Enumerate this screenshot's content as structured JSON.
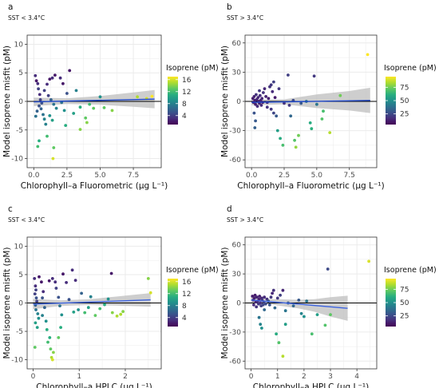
{
  "figure": {
    "colors": {
      "panel_grid": "#ebebeb",
      "regression_fit": "#1c45c6",
      "regression_fit_light": "#3d64e0",
      "confidence_band": "#bdbdbd",
      "zero_line": "#000000"
    },
    "colorscale": "viridis"
  },
  "chart_data": [
    {
      "type": "scatter",
      "panel_label": "a",
      "subtitle": "SST < 3.4°C",
      "xlabel": "Chlorophyll–a Fluorometric (µg L⁻¹)",
      "ylabel": "Model isoprene misfit (pM)",
      "xlim": [
        -0.5,
        9.6
      ],
      "ylim": [
        -11.6,
        11.6
      ],
      "xticks": [
        0,
        2.5,
        5,
        7.5
      ],
      "xtick_labels": [
        "0.0",
        "2.5",
        "5.0",
        "7.5"
      ],
      "yticks": [
        -10,
        -5,
        0,
        5,
        10
      ],
      "grid": true,
      "legend": {
        "title": "Isoprene (pM)",
        "position": "right",
        "ticks": [
          4,
          8,
          12,
          16
        ],
        "range": [
          1,
          17
        ]
      },
      "fit": {
        "x0": 0,
        "x1": 9.1,
        "y0": -0.08,
        "y1": 0.4,
        "band_x": [
          0,
          2.5,
          5,
          7.5,
          9.1
        ],
        "band_half": [
          0.75,
          0.5,
          0.75,
          1.25,
          1.6
        ]
      },
      "points": [
        [
          0.12,
          4.5,
          3
        ],
        [
          0.2,
          3.6,
          2
        ],
        [
          0.3,
          3.1,
          3
        ],
        [
          0.35,
          2.2,
          4
        ],
        [
          0.45,
          1.2,
          3
        ],
        [
          0.5,
          0.3,
          4
        ],
        [
          0.6,
          -0.3,
          5
        ],
        [
          0.55,
          -1.3,
          6
        ],
        [
          0.7,
          -2.3,
          7
        ],
        [
          0.8,
          -3.1,
          8
        ],
        [
          0.9,
          -4.0,
          8
        ],
        [
          0.4,
          -6.9,
          11
        ],
        [
          0.3,
          -7.9,
          12
        ],
        [
          0.15,
          -2.6,
          7
        ],
        [
          0.25,
          -1.7,
          6
        ],
        [
          0.4,
          -0.8,
          5
        ],
        [
          0.8,
          1.9,
          4
        ],
        [
          1.0,
          3.0,
          3
        ],
        [
          1.2,
          3.9,
          2
        ],
        [
          1.4,
          4.1,
          3
        ],
        [
          1.6,
          4.6,
          2
        ],
        [
          1.1,
          1.0,
          4
        ],
        [
          1.3,
          0.3,
          6
        ],
        [
          1.5,
          -0.5,
          7
        ],
        [
          1.7,
          -1.2,
          8
        ],
        [
          1.2,
          -2.5,
          9
        ],
        [
          1.4,
          -3.3,
          10
        ],
        [
          1.0,
          -6.1,
          12
        ],
        [
          1.5,
          -8.1,
          13
        ],
        [
          1.45,
          -10.0,
          16
        ],
        [
          2.0,
          4.1,
          3
        ],
        [
          2.2,
          3.1,
          2
        ],
        [
          2.1,
          -0.2,
          7
        ],
        [
          2.3,
          -1.6,
          9
        ],
        [
          2.4,
          -4.2,
          11
        ],
        [
          2.7,
          5.4,
          2
        ],
        [
          2.5,
          1.4,
          5
        ],
        [
          3.0,
          -2.1,
          10
        ],
        [
          3.2,
          1.9,
          8
        ],
        [
          3.5,
          -1.0,
          11
        ],
        [
          3.5,
          -4.9,
          14
        ],
        [
          3.9,
          -2.9,
          13
        ],
        [
          4.0,
          -3.7,
          14
        ],
        [
          4.2,
          -0.5,
          12
        ],
        [
          4.5,
          -1.2,
          13
        ],
        [
          5.0,
          0.8,
          9
        ],
        [
          5.3,
          -1.1,
          13
        ],
        [
          5.9,
          -1.6,
          14
        ],
        [
          7.8,
          0.8,
          15
        ],
        [
          8.5,
          0.5,
          16
        ],
        [
          8.9,
          0.9,
          17
        ]
      ]
    },
    {
      "type": "scatter",
      "panel_label": "b",
      "subtitle": "SST > 3.4°C",
      "xlabel": "Chlorophyll–a Fluorometric (µg L⁻¹)",
      "ylabel": "Model isoprene misfit (pM)",
      "xlim": [
        -0.5,
        9.6
      ],
      "ylim": [
        -68,
        68
      ],
      "xticks": [
        0,
        2.5,
        5,
        7.5
      ],
      "xtick_labels": [
        "0.0",
        "2.5",
        "5.0",
        "7.5"
      ],
      "yticks": [
        -60,
        -30,
        0,
        30,
        60
      ],
      "grid": true,
      "legend": {
        "title": "Isoprene (pM)",
        "position": "right",
        "ticks": [
          25,
          50,
          75
        ],
        "range": [
          5,
          95
        ]
      },
      "fit": {
        "x0": 0,
        "x1": 9.1,
        "y0": -1.0,
        "y1": 1.0,
        "band_x": [
          0,
          2.5,
          5,
          7.5,
          9.1
        ],
        "band_half": [
          3,
          2.5,
          7,
          10,
          13
        ]
      },
      "points": [
        [
          0.1,
          3,
          12
        ],
        [
          0.15,
          -1,
          10
        ],
        [
          0.2,
          5,
          14
        ],
        [
          0.25,
          1,
          12
        ],
        [
          0.3,
          -3,
          13
        ],
        [
          0.35,
          7,
          18
        ],
        [
          0.4,
          2,
          14
        ],
        [
          0.45,
          -5,
          16
        ],
        [
          0.5,
          4,
          15
        ],
        [
          0.55,
          0,
          12
        ],
        [
          0.6,
          -2,
          13
        ],
        [
          0.65,
          6,
          17
        ],
        [
          0.7,
          1,
          14
        ],
        [
          0.75,
          -4,
          16
        ],
        [
          0.8,
          3,
          15
        ],
        [
          0.85,
          -1,
          12
        ],
        [
          0.2,
          -12,
          28
        ],
        [
          0.3,
          -20,
          30
        ],
        [
          0.25,
          -27,
          32
        ],
        [
          0.6,
          11,
          20
        ],
        [
          0.9,
          9,
          18
        ],
        [
          1.0,
          13,
          15
        ],
        [
          1.1,
          5,
          14
        ],
        [
          1.2,
          -1,
          16
        ],
        [
          1.3,
          3,
          13
        ],
        [
          1.4,
          15,
          18
        ],
        [
          1.5,
          17,
          20
        ],
        [
          1.6,
          10,
          16
        ],
        [
          1.7,
          20,
          22
        ],
        [
          1.8,
          4,
          12
        ],
        [
          1.2,
          -6,
          18
        ],
        [
          1.5,
          -8,
          20
        ],
        [
          1.7,
          -12,
          24
        ],
        [
          1.9,
          -15,
          30
        ],
        [
          2.0,
          -30,
          55
        ],
        [
          2.2,
          -38,
          60
        ],
        [
          2.4,
          -45,
          68
        ],
        [
          2.1,
          13,
          20
        ],
        [
          2.5,
          -2,
          18
        ],
        [
          2.8,
          27,
          22
        ],
        [
          2.9,
          -4,
          20
        ],
        [
          3.0,
          -15,
          35
        ],
        [
          3.2,
          1,
          25
        ],
        [
          3.3,
          -40,
          70
        ],
        [
          3.4,
          -47,
          80
        ],
        [
          3.6,
          -35,
          75
        ],
        [
          3.8,
          -2,
          30
        ],
        [
          4.2,
          0,
          40
        ],
        [
          4.5,
          -22,
          60
        ],
        [
          4.6,
          -28,
          62
        ],
        [
          4.8,
          26,
          20
        ],
        [
          5.0,
          -3,
          40
        ],
        [
          5.4,
          -18,
          70
        ],
        [
          5.5,
          -10,
          68
        ],
        [
          6.0,
          -32,
          85
        ],
        [
          6.8,
          6,
          75
        ],
        [
          8.9,
          48,
          95
        ]
      ]
    },
    {
      "type": "scatter",
      "panel_label": "c",
      "subtitle": "SST < 3.4°C",
      "xlabel": "Chlorophyll–a HPLC (µg L⁻¹)",
      "ylabel": "Model isoprene misfit (pM)",
      "xlim": [
        -0.13,
        2.78
      ],
      "ylim": [
        -11.6,
        11.6
      ],
      "xticks": [
        0,
        1,
        2
      ],
      "xtick_labels": [
        "0",
        "1",
        "2"
      ],
      "yticks": [
        -10,
        -5,
        0,
        5,
        10
      ],
      "grid": true,
      "legend": {
        "title": "Isoprene (pM)",
        "position": "right",
        "ticks": [
          4,
          8,
          12,
          16
        ],
        "range": [
          1,
          17
        ]
      },
      "fit": {
        "x0": 0,
        "x1": 2.55,
        "y0": -0.2,
        "y1": 0.55,
        "band_x": [
          0,
          0.6,
          1.2,
          1.8,
          2.55
        ],
        "band_half": [
          0.9,
          0.5,
          0.5,
          0.8,
          1.2
        ]
      },
      "points": [
        [
          0.03,
          4.3,
          3
        ],
        [
          0.05,
          3.0,
          3
        ],
        [
          0.06,
          2.3,
          4
        ],
        [
          0.04,
          1.6,
          4
        ],
        [
          0.07,
          0.9,
          5
        ],
        [
          0.08,
          0.3,
          4
        ],
        [
          0.05,
          -0.4,
          6
        ],
        [
          0.06,
          -1.2,
          7
        ],
        [
          0.1,
          -1.9,
          8
        ],
        [
          0.12,
          -2.7,
          9
        ],
        [
          0.05,
          -3.5,
          10
        ],
        [
          0.09,
          -4.3,
          10
        ],
        [
          0.04,
          -7.8,
          13
        ],
        [
          0.13,
          4.6,
          2
        ],
        [
          0.18,
          3.7,
          2
        ],
        [
          0.22,
          2.0,
          3
        ],
        [
          0.2,
          0.9,
          5
        ],
        [
          0.25,
          -0.8,
          6
        ],
        [
          0.2,
          -2.2,
          8
        ],
        [
          0.28,
          -3.2,
          9
        ],
        [
          0.3,
          -4.7,
          11
        ],
        [
          0.36,
          -6.1,
          11
        ],
        [
          0.32,
          -6.9,
          12
        ],
        [
          0.38,
          -8.1,
          13
        ],
        [
          0.4,
          -9.6,
          15
        ],
        [
          0.42,
          -10.0,
          16
        ],
        [
          0.44,
          -8.7,
          14
        ],
        [
          0.35,
          3.9,
          2
        ],
        [
          0.42,
          4.3,
          3
        ],
        [
          0.48,
          3.7,
          3
        ],
        [
          0.5,
          2.6,
          4
        ],
        [
          0.55,
          1.0,
          5
        ],
        [
          0.58,
          -0.5,
          7
        ],
        [
          0.62,
          -2.1,
          9
        ],
        [
          0.6,
          -4.3,
          11
        ],
        [
          0.55,
          -6.1,
          13
        ],
        [
          0.65,
          5.1,
          2
        ],
        [
          0.72,
          3.6,
          3
        ],
        [
          0.78,
          0.6,
          5
        ],
        [
          0.85,
          5.8,
          3
        ],
        [
          0.92,
          4.0,
          3
        ],
        [
          0.88,
          -1.6,
          10
        ],
        [
          0.98,
          -1.2,
          9
        ],
        [
          1.05,
          1.7,
          6
        ],
        [
          1.12,
          -1.7,
          12
        ],
        [
          1.2,
          -0.8,
          10
        ],
        [
          1.25,
          1.1,
          8
        ],
        [
          1.35,
          -2.2,
          13
        ],
        [
          1.45,
          -1.0,
          12
        ],
        [
          1.55,
          -0.3,
          11
        ],
        [
          1.63,
          0.7,
          9
        ],
        [
          1.7,
          5.2,
          2
        ],
        [
          1.72,
          -1.7,
          14
        ],
        [
          1.82,
          -2.3,
          15
        ],
        [
          1.9,
          -2.0,
          15
        ],
        [
          1.95,
          -1.5,
          14
        ],
        [
          2.5,
          4.3,
          14
        ],
        [
          2.55,
          1.8,
          16
        ]
      ]
    },
    {
      "type": "scatter",
      "panel_label": "d",
      "subtitle": "SST > 3.4°C",
      "xlabel": "Chlorophyll–a HPLC (µg L⁻¹)",
      "ylabel": "Model isoprene misfit (pM)",
      "xlim": [
        -0.23,
        4.75
      ],
      "ylim": [
        -68,
        68
      ],
      "xticks": [
        0,
        1,
        2,
        3,
        4
      ],
      "xtick_labels": [
        "0",
        "1",
        "2",
        "3",
        "4"
      ],
      "yticks": [
        -60,
        -30,
        0,
        30,
        60
      ],
      "grid": true,
      "legend": {
        "title": "Isoprene (pM)",
        "position": "right",
        "ticks": [
          25,
          50,
          75
        ],
        "range": [
          5,
          95
        ]
      },
      "fit": {
        "x0": 0,
        "x1": 3.65,
        "y0": 3.0,
        "y1": -5.5,
        "band_x": [
          0,
          0.6,
          1.2,
          1.8,
          2.4,
          3.0,
          3.65
        ],
        "band_half": [
          2.5,
          2.5,
          3.5,
          4.5,
          6.5,
          10,
          13
        ]
      },
      "points": [
        [
          0.05,
          7,
          12
        ],
        [
          0.08,
          3,
          14
        ],
        [
          0.1,
          -2,
          16
        ],
        [
          0.12,
          5,
          13
        ],
        [
          0.15,
          8,
          12
        ],
        [
          0.18,
          1,
          15
        ],
        [
          0.2,
          -4,
          18
        ],
        [
          0.22,
          6,
          14
        ],
        [
          0.25,
          2,
          16
        ],
        [
          0.28,
          -1,
          20
        ],
        [
          0.3,
          4,
          14
        ],
        [
          0.32,
          7,
          13
        ],
        [
          0.35,
          0,
          18
        ],
        [
          0.38,
          -3,
          22
        ],
        [
          0.4,
          5,
          15
        ],
        [
          0.42,
          3,
          20
        ],
        [
          0.45,
          -2,
          24
        ],
        [
          0.48,
          1,
          22
        ],
        [
          0.5,
          6,
          16
        ],
        [
          0.55,
          -1,
          25
        ],
        [
          0.6,
          4,
          18
        ],
        [
          0.65,
          2,
          30
        ],
        [
          0.7,
          -2,
          28
        ],
        [
          0.75,
          6,
          20
        ],
        [
          0.8,
          10,
          15
        ],
        [
          0.85,
          13,
          18
        ],
        [
          0.9,
          -5,
          35
        ],
        [
          0.3,
          -15,
          40
        ],
        [
          0.35,
          -22,
          45
        ],
        [
          0.4,
          -26,
          50
        ],
        [
          0.5,
          -7,
          35
        ],
        [
          1.0,
          5,
          20
        ],
        [
          1.1,
          8,
          22
        ],
        [
          1.2,
          13,
          15
        ],
        [
          1.3,
          -8,
          40
        ],
        [
          1.4,
          0,
          30
        ],
        [
          1.6,
          -3,
          35
        ],
        [
          1.8,
          3,
          30
        ],
        [
          1.9,
          -11,
          45
        ],
        [
          2.0,
          -14,
          50
        ],
        [
          2.1,
          2,
          40
        ],
        [
          0.95,
          -32,
          60
        ],
        [
          1.05,
          -41,
          70
        ],
        [
          1.2,
          -55,
          85
        ],
        [
          1.3,
          -22,
          55
        ],
        [
          2.3,
          -32,
          68
        ],
        [
          2.5,
          -12,
          55
        ],
        [
          2.8,
          -23,
          70
        ],
        [
          2.9,
          35,
          25
        ],
        [
          3.0,
          -12,
          72
        ],
        [
          4.45,
          43,
          90
        ]
      ]
    }
  ]
}
